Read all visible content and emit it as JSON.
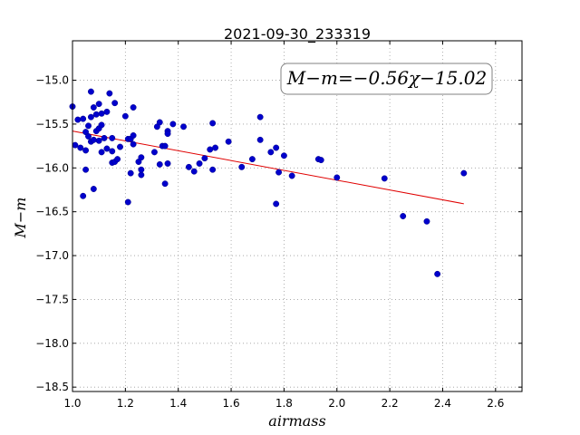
{
  "chart_data": {
    "type": "scatter",
    "title": "2021-09-30_233319",
    "xlabel": "airmass",
    "ylabel": "M−m",
    "xlim": [
      1.0,
      2.7
    ],
    "ylim": [
      -18.55,
      -14.55
    ],
    "y_inverted": true,
    "grid": true,
    "x_ticks": [
      "1.0",
      "1.2",
      "1.4",
      "1.6",
      "1.8",
      "2.0",
      "2.2",
      "2.4",
      "2.6"
    ],
    "x_tick_values": [
      1.0,
      1.2,
      1.4,
      1.6,
      1.8,
      2.0,
      2.2,
      2.4,
      2.6
    ],
    "y_ticks": [
      "−15.0",
      "−15.5",
      "−16.0",
      "−16.5",
      "−17.0",
      "−17.5",
      "−18.0",
      "−18.5"
    ],
    "y_tick_values": [
      -15.0,
      -15.5,
      -16.0,
      -16.5,
      -17.0,
      -17.5,
      -18.0,
      -18.5
    ],
    "annotation": "M−m=−0.56χ−15.02",
    "colors": {
      "points": "#0000cc",
      "fit_line": "#e00000",
      "grid": "#9e9e9e",
      "annotation_border": "#808080"
    },
    "fit": {
      "slope": -0.56,
      "intercept": -15.02,
      "x_range": [
        1.0,
        2.48
      ]
    },
    "points": [
      {
        "x": 1.0,
        "y": -15.3
      },
      {
        "x": 1.01,
        "y": -15.74
      },
      {
        "x": 1.02,
        "y": -15.45
      },
      {
        "x": 1.03,
        "y": -15.77
      },
      {
        "x": 1.04,
        "y": -16.32
      },
      {
        "x": 1.04,
        "y": -15.44
      },
      {
        "x": 1.05,
        "y": -16.02
      },
      {
        "x": 1.05,
        "y": -15.59
      },
      {
        "x": 1.05,
        "y": -15.8
      },
      {
        "x": 1.06,
        "y": -15.52
      },
      {
        "x": 1.06,
        "y": -15.64
      },
      {
        "x": 1.07,
        "y": -15.13
      },
      {
        "x": 1.07,
        "y": -15.7
      },
      {
        "x": 1.07,
        "y": -15.42
      },
      {
        "x": 1.08,
        "y": -15.31
      },
      {
        "x": 1.08,
        "y": -15.68
      },
      {
        "x": 1.08,
        "y": -16.24
      },
      {
        "x": 1.09,
        "y": -15.58
      },
      {
        "x": 1.09,
        "y": -15.39
      },
      {
        "x": 1.1,
        "y": -15.69
      },
      {
        "x": 1.1,
        "y": -15.27
      },
      {
        "x": 1.1,
        "y": -15.55
      },
      {
        "x": 1.11,
        "y": -15.38
      },
      {
        "x": 1.11,
        "y": -15.51
      },
      {
        "x": 1.11,
        "y": -15.82
      },
      {
        "x": 1.12,
        "y": -15.66
      },
      {
        "x": 1.13,
        "y": -15.36
      },
      {
        "x": 1.13,
        "y": -15.78
      },
      {
        "x": 1.14,
        "y": -15.15
      },
      {
        "x": 1.15,
        "y": -15.81
      },
      {
        "x": 1.15,
        "y": -15.94
      },
      {
        "x": 1.15,
        "y": -15.66
      },
      {
        "x": 1.16,
        "y": -15.26
      },
      {
        "x": 1.16,
        "y": -15.93
      },
      {
        "x": 1.17,
        "y": -15.9
      },
      {
        "x": 1.18,
        "y": -15.76
      },
      {
        "x": 1.2,
        "y": -15.41
      },
      {
        "x": 1.21,
        "y": -16.39
      },
      {
        "x": 1.21,
        "y": -15.67
      },
      {
        "x": 1.22,
        "y": -15.67
      },
      {
        "x": 1.22,
        "y": -16.06
      },
      {
        "x": 1.23,
        "y": -15.63
      },
      {
        "x": 1.23,
        "y": -15.31
      },
      {
        "x": 1.23,
        "y": -15.73
      },
      {
        "x": 1.25,
        "y": -15.93
      },
      {
        "x": 1.26,
        "y": -15.88
      },
      {
        "x": 1.26,
        "y": -16.08
      },
      {
        "x": 1.26,
        "y": -16.02
      },
      {
        "x": 1.31,
        "y": -15.82
      },
      {
        "x": 1.32,
        "y": -15.53
      },
      {
        "x": 1.33,
        "y": -15.48
      },
      {
        "x": 1.33,
        "y": -15.96
      },
      {
        "x": 1.34,
        "y": -15.75
      },
      {
        "x": 1.35,
        "y": -16.18
      },
      {
        "x": 1.35,
        "y": -15.75
      },
      {
        "x": 1.36,
        "y": -15.58
      },
      {
        "x": 1.36,
        "y": -15.95
      },
      {
        "x": 1.36,
        "y": -15.61
      },
      {
        "x": 1.38,
        "y": -15.5
      },
      {
        "x": 1.42,
        "y": -15.53
      },
      {
        "x": 1.44,
        "y": -15.99
      },
      {
        "x": 1.46,
        "y": -16.04
      },
      {
        "x": 1.48,
        "y": -15.95
      },
      {
        "x": 1.5,
        "y": -15.89
      },
      {
        "x": 1.52,
        "y": -15.79
      },
      {
        "x": 1.53,
        "y": -15.49
      },
      {
        "x": 1.53,
        "y": -16.02
      },
      {
        "x": 1.54,
        "y": -15.77
      },
      {
        "x": 1.59,
        "y": -15.7
      },
      {
        "x": 1.64,
        "y": -15.99
      },
      {
        "x": 1.68,
        "y": -15.9
      },
      {
        "x": 1.71,
        "y": -15.42
      },
      {
        "x": 1.71,
        "y": -15.68
      },
      {
        "x": 1.75,
        "y": -15.82
      },
      {
        "x": 1.77,
        "y": -15.77
      },
      {
        "x": 1.77,
        "y": -16.41
      },
      {
        "x": 1.78,
        "y": -16.05
      },
      {
        "x": 1.8,
        "y": -15.86
      },
      {
        "x": 1.83,
        "y": -16.09
      },
      {
        "x": 1.93,
        "y": -15.9
      },
      {
        "x": 1.94,
        "y": -15.91
      },
      {
        "x": 2.0,
        "y": -16.11
      },
      {
        "x": 2.18,
        "y": -16.12
      },
      {
        "x": 2.25,
        "y": -16.55
      },
      {
        "x": 2.34,
        "y": -16.61
      },
      {
        "x": 2.38,
        "y": -17.21
      },
      {
        "x": 2.48,
        "y": -16.06
      }
    ]
  }
}
